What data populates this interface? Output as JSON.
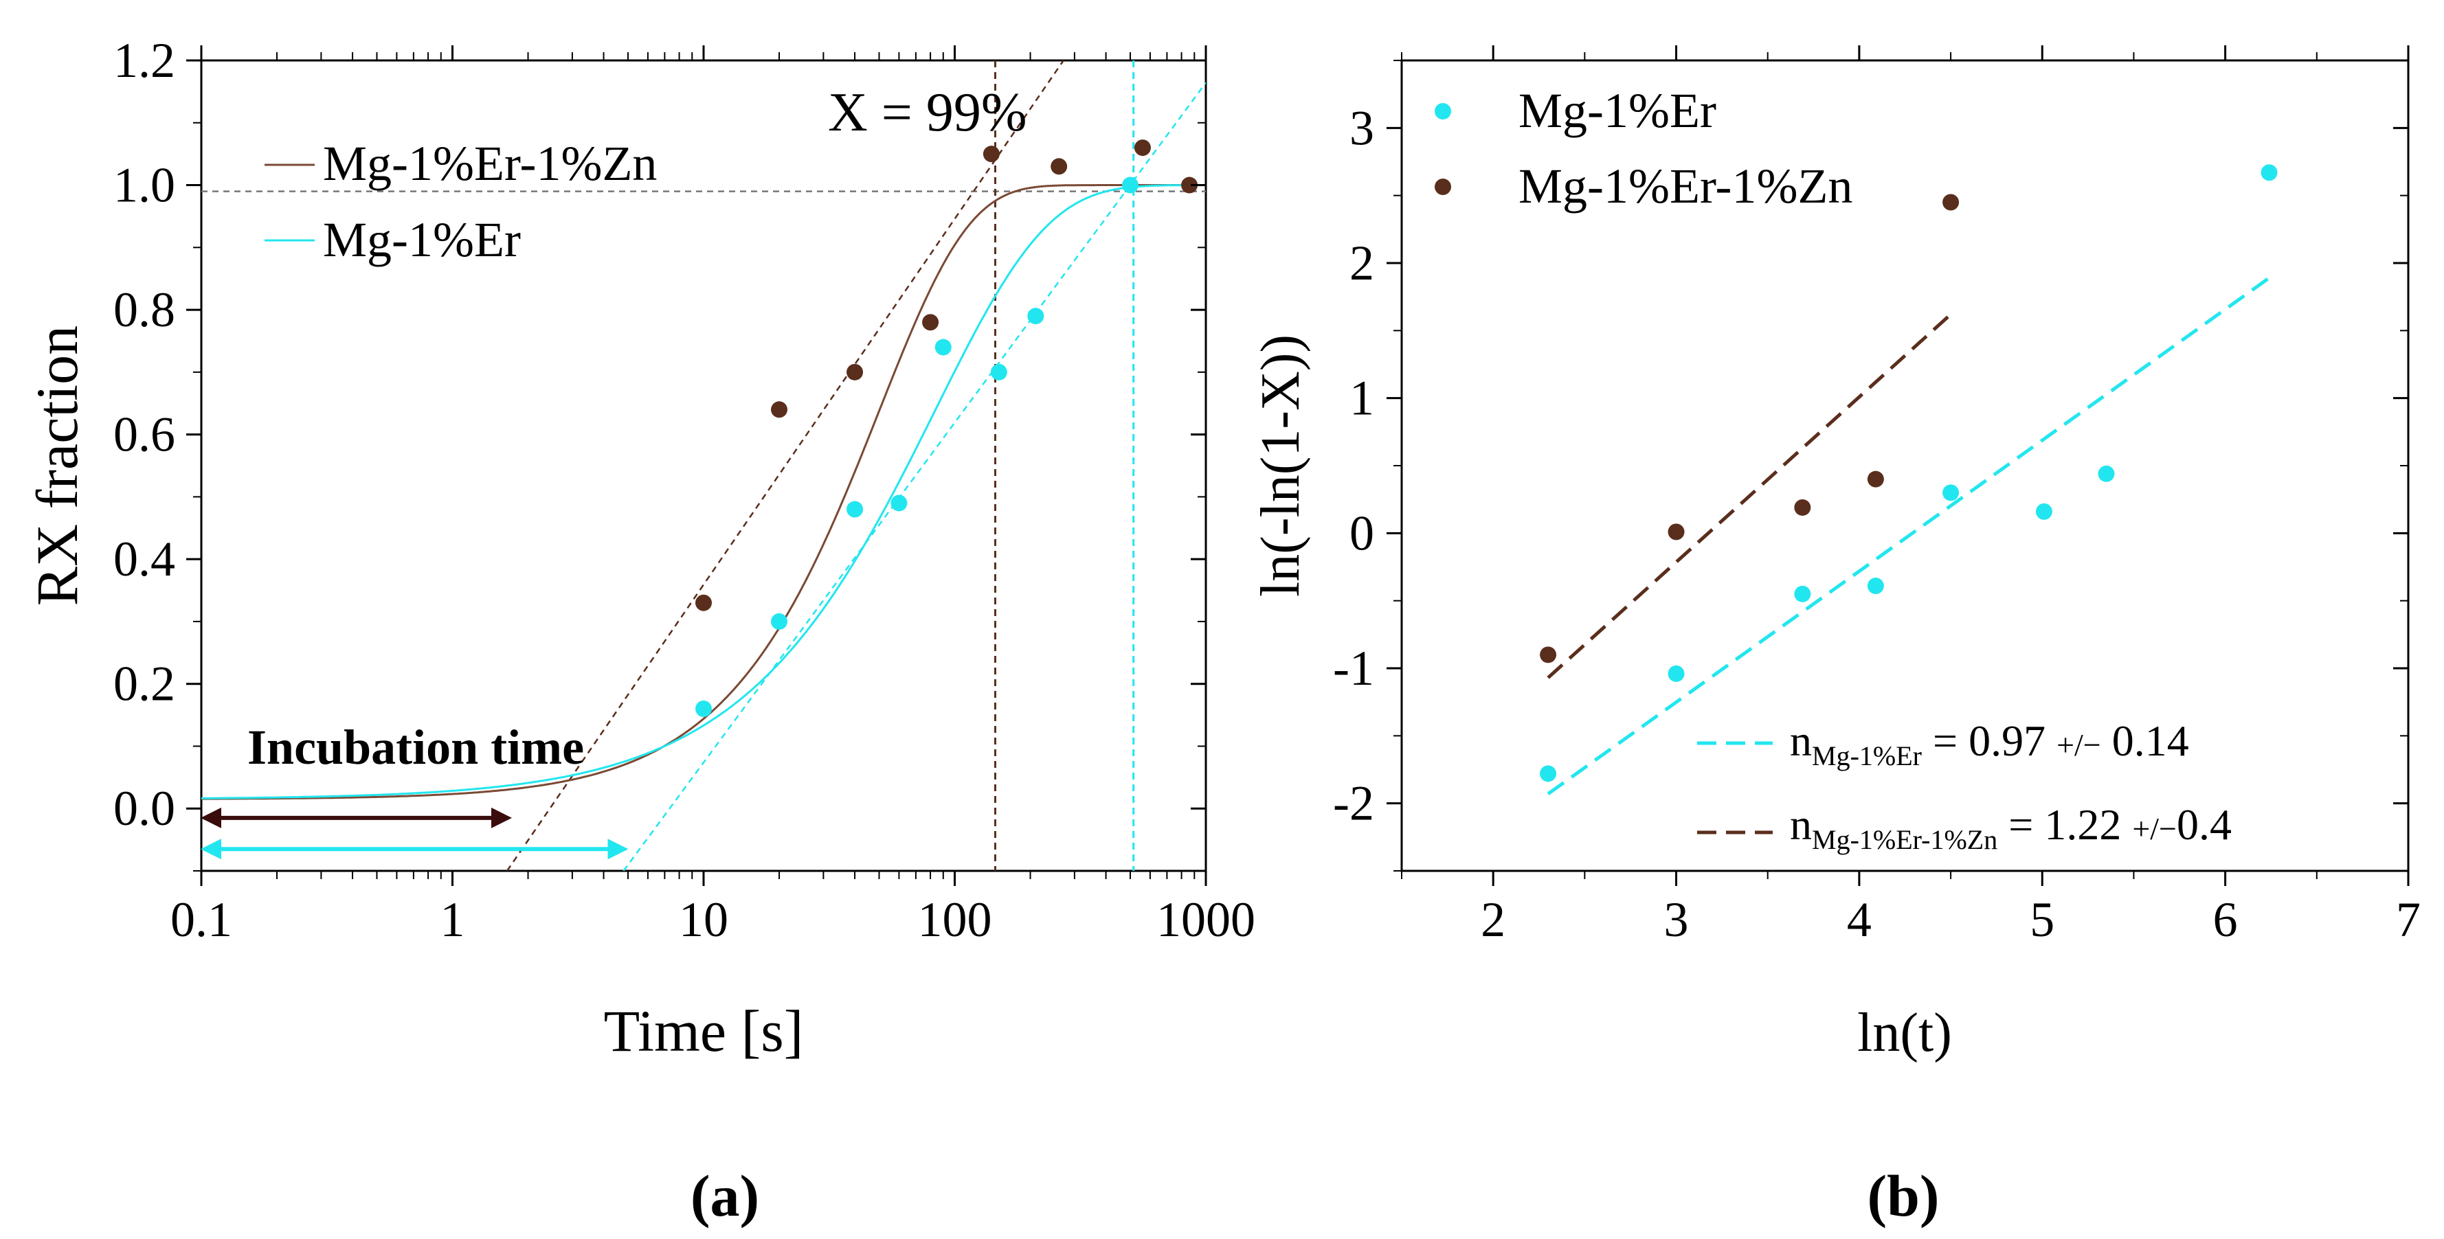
{
  "colors": {
    "er": "#22e6ef",
    "erzn": "#5a2e1c",
    "erzn_line": "#7a4a35",
    "grid": "#777777",
    "arrow_dark": "#3a0c0c"
  },
  "chart_data": [
    {
      "type": "scatter",
      "panel_label": "(a)",
      "xlabel": "Time [s]",
      "ylabel": "RX fraction",
      "xscale": "log",
      "xlim": [
        0.1,
        1000
      ],
      "ylim": [
        -0.1,
        1.2
      ],
      "xticks": [
        0.1,
        1,
        10,
        100,
        1000
      ],
      "xtick_labels": [
        "0.1",
        "1",
        "10",
        "100",
        "1000"
      ],
      "yticks": [
        0.0,
        0.2,
        0.4,
        0.6,
        0.8,
        1.0,
        1.2
      ],
      "ytick_labels": [
        "0.0",
        "0.2",
        "0.4",
        "0.6",
        "0.8",
        "1.0",
        "1.2"
      ],
      "legend": {
        "placement": "top-left",
        "entries": [
          "Mg-1%Er-1%Zn",
          "Mg-1%Er"
        ]
      },
      "series": [
        {
          "name": "Mg-1%Er-1%Zn",
          "color": "erzn",
          "x": [
            10,
            20,
            40,
            80,
            140,
            260,
            560,
            860
          ],
          "y": [
            0.33,
            0.64,
            0.7,
            0.78,
            1.05,
            1.03,
            1.06,
            1.0
          ],
          "fit_k": 0.02,
          "fit_n": 1.22
        },
        {
          "name": "Mg-1%Er",
          "color": "er",
          "x": [
            10,
            20,
            40,
            60,
            90,
            150,
            210,
            500
          ],
          "y": [
            0.16,
            0.3,
            0.48,
            0.49,
            0.74,
            0.7,
            0.79,
            1.0
          ],
          "fit_k": 0.012,
          "fit_n": 0.97
        }
      ],
      "reference_line_y": 0.99,
      "annotations": {
        "x99_text": "X = 99%",
        "x99_er_time": 515,
        "x99_erzn_time": 145,
        "incubation_text": "Incubation time",
        "incubation_erzn_end": 1.65,
        "incubation_er_end": 4.8
      }
    },
    {
      "type": "scatter",
      "panel_label": "(b)",
      "xlabel": "ln(t)",
      "ylabel": "ln(-ln(1-X))",
      "xlim": [
        1.5,
        7
      ],
      "ylim": [
        -2.5,
        3.5
      ],
      "xticks": [
        2,
        3,
        4,
        5,
        6,
        7
      ],
      "xtick_labels": [
        "2",
        "3",
        "4",
        "5",
        "6",
        "7"
      ],
      "yticks": [
        -2,
        -1,
        0,
        1,
        2,
        3
      ],
      "ytick_labels": [
        "-2",
        "-1",
        "0",
        "1",
        "2",
        "3"
      ],
      "legend": {
        "placement": "top-left",
        "entries": [
          "Mg-1%Er",
          "Mg-1%Er-1%Zn"
        ]
      },
      "series": [
        {
          "name": "Mg-1%Er",
          "color": "er",
          "x": [
            2.3,
            3.0,
            3.69,
            4.09,
            4.5,
            5.01,
            5.35,
            6.24
          ],
          "y": [
            -1.78,
            -1.04,
            -0.45,
            -0.39,
            0.3,
            0.16,
            0.44,
            2.67
          ]
        },
        {
          "name": "Mg-1%Er-1%Zn",
          "color": "erzn",
          "x": [
            2.3,
            3.0,
            3.69,
            4.09,
            4.5
          ],
          "y": [
            -0.9,
            0.01,
            0.19,
            0.4,
            2.45
          ]
        }
      ],
      "fits": [
        {
          "name": "Mg-1%Er",
          "color": "er",
          "x": [
            2.3,
            6.24
          ],
          "y": [
            -1.93,
            1.89
          ],
          "label_main": "n",
          "label_sub": "Mg-1%Er",
          "label_eq": " = 0.97 ",
          "label_pm": "+/−",
          "label_err": " 0.14"
        },
        {
          "name": "Mg-1%Er-1%Zn",
          "color": "erzn",
          "x": [
            2.3,
            4.5
          ],
          "y": [
            -1.07,
            1.62
          ],
          "label_main": "n",
          "label_sub": "Mg-1%Er-1%Zn",
          "label_eq": " = 1.22 ",
          "label_pm": "+/−",
          "label_err": "0.4"
        }
      ]
    }
  ]
}
